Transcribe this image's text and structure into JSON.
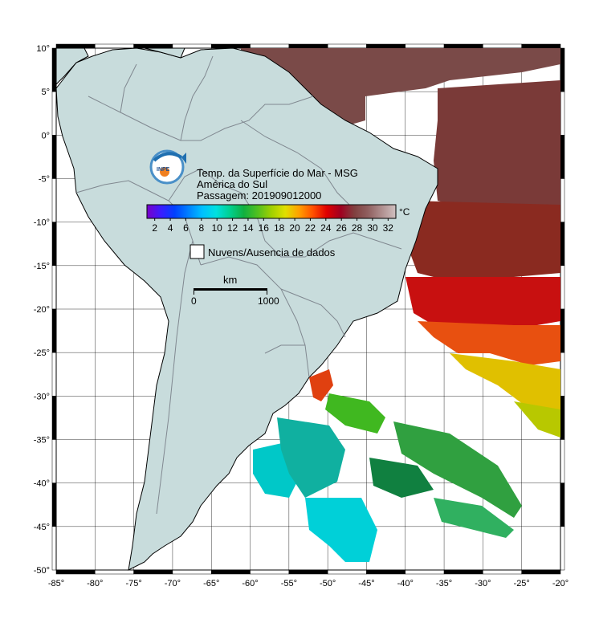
{
  "map": {
    "title_lines": [
      "Temp. da Superfície do Mar - MSG",
      "América do Sul",
      "Passagem: 201909012000"
    ],
    "lon_ticks": [
      -85,
      -80,
      -75,
      -70,
      -65,
      -60,
      -55,
      -50,
      -45,
      -40,
      -35,
      -30,
      -25,
      -20
    ],
    "lat_ticks": [
      10,
      5,
      0,
      -5,
      -10,
      -15,
      -20,
      -25,
      -30,
      -35,
      -40,
      -45,
      -50
    ],
    "lon_range": [
      -85,
      -20
    ],
    "lat_range": [
      -50,
      10
    ],
    "degree_symbol": "°",
    "grid": true
  },
  "colorbar": {
    "ticks": [
      "2",
      "4",
      "6",
      "8",
      "10",
      "12",
      "14",
      "16",
      "18",
      "20",
      "22",
      "24",
      "26",
      "28",
      "30",
      "32"
    ],
    "unit": "°C",
    "range": [
      1,
      33
    ],
    "colors": [
      "#7a00c8",
      "#3b1cff",
      "#0040ff",
      "#0080ff",
      "#00c0ff",
      "#00e0e0",
      "#00d090",
      "#10b040",
      "#50c020",
      "#a0d000",
      "#e0e000",
      "#ffa000",
      "#ff5000",
      "#e00000",
      "#a00020",
      "#804040",
      "#906060",
      "#b09090",
      "#d0c0c0"
    ]
  },
  "legend": {
    "clouds_label": "Nuvens/Ausencia de dados"
  },
  "scalebar": {
    "unit": "km",
    "start": "0",
    "end": "1000"
  },
  "logo": {
    "text": "INPE"
  },
  "colors": {
    "land": "#c8dcdc",
    "border": "#808890",
    "coast": "#000000",
    "grid": "#000000",
    "frame": "#000000"
  }
}
